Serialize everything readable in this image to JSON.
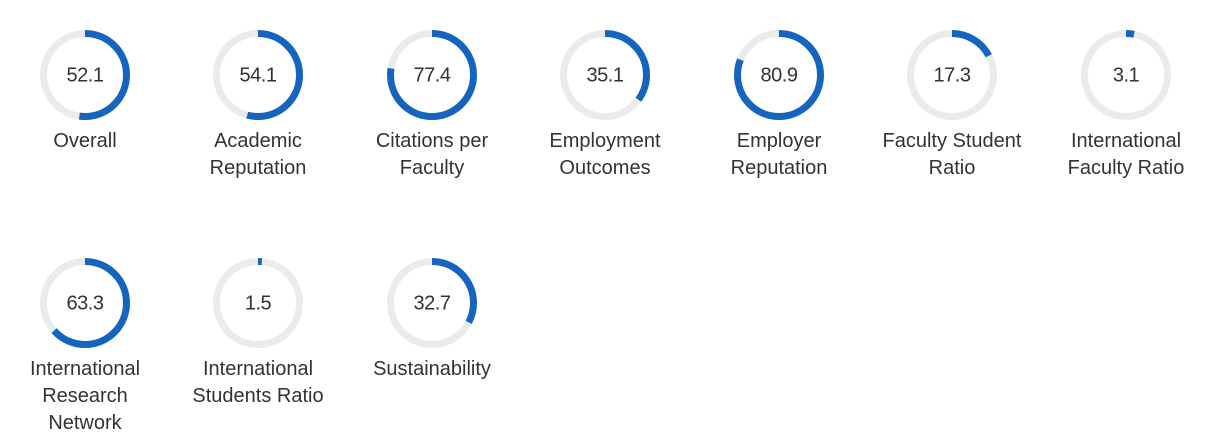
{
  "colors": {
    "accent": "#1565c0",
    "track": "#ebebeb",
    "text": "#333333"
  },
  "chart_data": {
    "type": "radial-progress",
    "ylim": [
      0,
      100
    ],
    "metrics": [
      {
        "label": "Overall",
        "value": 52.1,
        "display": "52.1"
      },
      {
        "label": "Academic Reputation",
        "value": 54.1,
        "display": "54.1"
      },
      {
        "label": "Citations per Faculty",
        "value": 77.4,
        "display": "77.4"
      },
      {
        "label": "Employment Outcomes",
        "value": 35.1,
        "display": "35.1"
      },
      {
        "label": "Employer Reputation",
        "value": 80.9,
        "display": "80.9"
      },
      {
        "label": "Faculty Student Ratio",
        "value": 17.3,
        "display": "17.3"
      },
      {
        "label": "International Faculty Ratio",
        "value": 3.1,
        "display": "3.1"
      },
      {
        "label": "International Research Network",
        "value": 63.3,
        "display": "63.3"
      },
      {
        "label": "International Students Ratio",
        "value": 1.5,
        "display": "1.5"
      },
      {
        "label": "Sustainability",
        "value": 32.7,
        "display": "32.7"
      }
    ]
  }
}
